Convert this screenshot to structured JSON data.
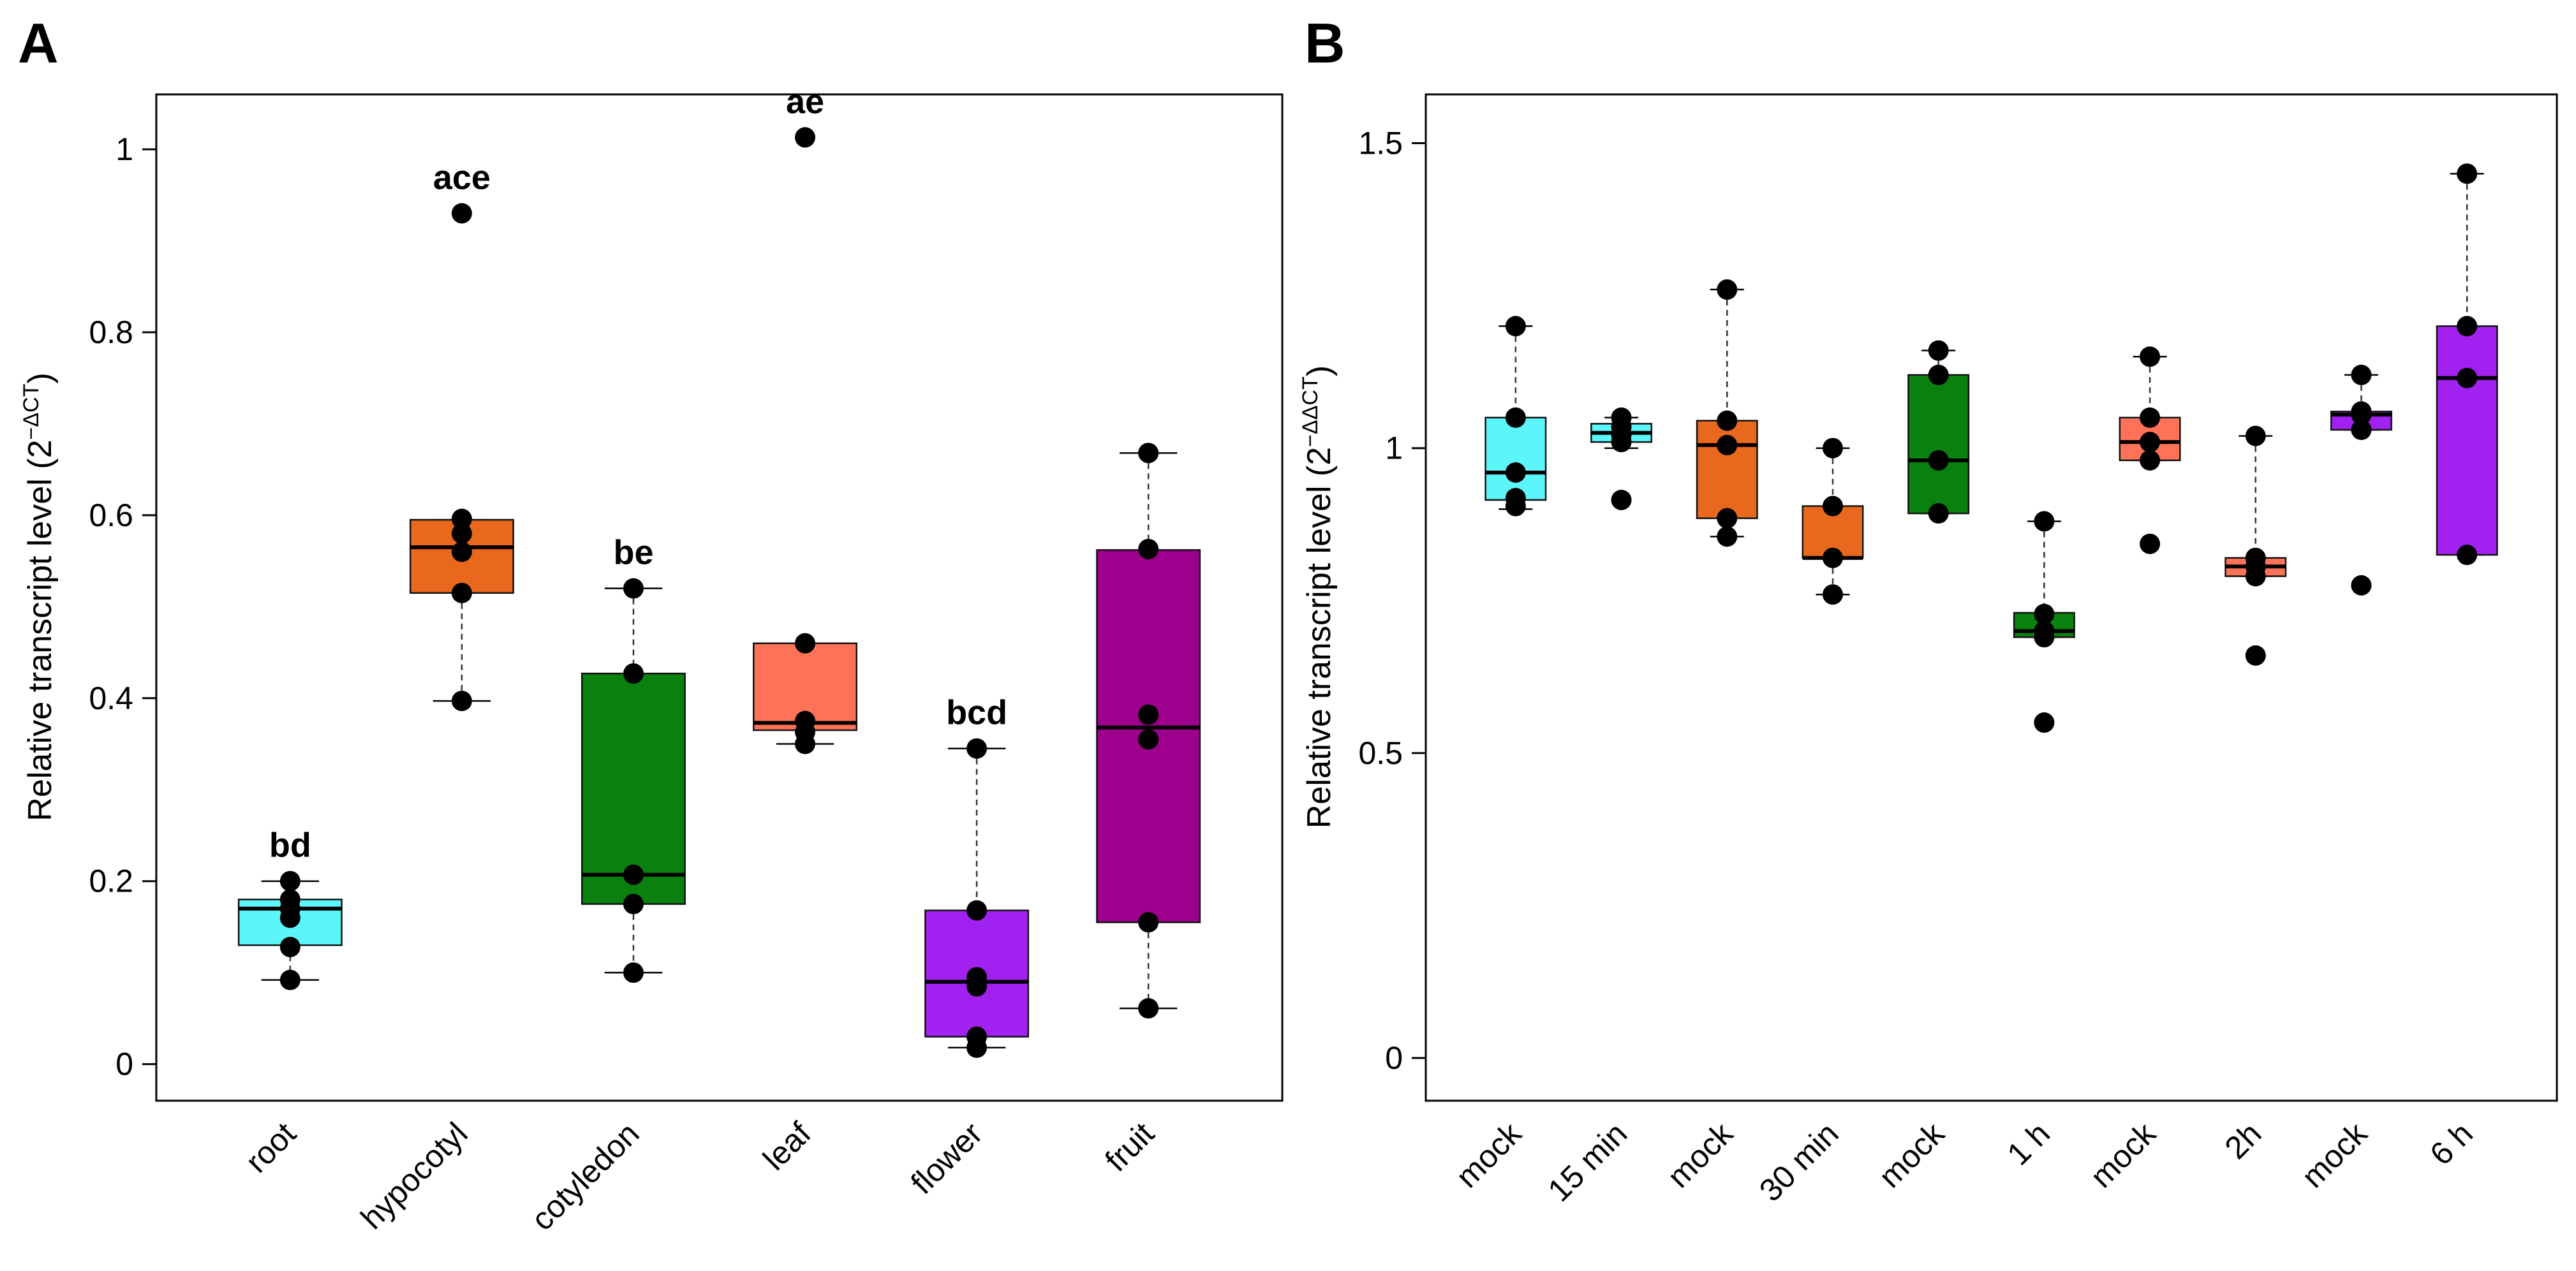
{
  "chart_data": [
    {
      "panel": "A",
      "type": "box",
      "ylabel": "Relative transcript level (2",
      "ylabel_sup": "−ΔCT",
      "ylabel_close": ")",
      "ylim": [
        -0.04,
        1.06
      ],
      "yticks": [
        0,
        0.2,
        0.4,
        0.6,
        0.8,
        1
      ],
      "ytick_labels": [
        "0",
        "0.2",
        "0.4",
        "0.6",
        "0.8",
        "1"
      ],
      "categories": [
        "root",
        "hypocotyl",
        "cotyledon",
        "leaf",
        "flower",
        "fruit"
      ],
      "boxes": [
        {
          "label": "root",
          "color": "#5CF5FA",
          "q1": 0.13,
          "median": 0.17,
          "q3": 0.18,
          "whisker_low": 0.092,
          "whisker_high": 0.2,
          "sig": "bd",
          "points": [
            0.092,
            0.128,
            0.16,
            0.17,
            0.18,
            0.2
          ]
        },
        {
          "label": "hypocotyl",
          "color": "#E8681E",
          "q1": 0.515,
          "median": 0.565,
          "q3": 0.595,
          "whisker_low": 0.397,
          "whisker_high": 0.595,
          "sig": "ace",
          "points": [
            0.397,
            0.515,
            0.56,
            0.58,
            0.596,
            0.93
          ]
        },
        {
          "label": "cotyledon",
          "color": "#0A800F",
          "q1": 0.175,
          "median": 0.207,
          "q3": 0.427,
          "whisker_low": 0.1,
          "whisker_high": 0.52,
          "sig": "be",
          "points": [
            0.1,
            0.175,
            0.207,
            0.427,
            0.52
          ]
        },
        {
          "label": "leaf",
          "color": "#FE7358",
          "q1": 0.365,
          "median": 0.373,
          "q3": 0.46,
          "whisker_low": 0.35,
          "whisker_high": 0.46,
          "sig": "ae",
          "points": [
            0.35,
            0.363,
            0.375,
            0.46,
            1.013
          ]
        },
        {
          "label": "flower",
          "color": "#A122F0",
          "q1": 0.03,
          "median": 0.09,
          "q3": 0.168,
          "whisker_low": 0.018,
          "whisker_high": 0.345,
          "sig": "bcd",
          "points": [
            0.018,
            0.03,
            0.085,
            0.095,
            0.168,
            0.345
          ]
        },
        {
          "label": "fruit",
          "color": "#9C008C",
          "q1": 0.155,
          "median": 0.368,
          "q3": 0.562,
          "whisker_low": 0.061,
          "whisker_high": 0.668,
          "sig": "",
          "points": [
            0.061,
            0.155,
            0.355,
            0.382,
            0.563,
            0.668
          ]
        }
      ]
    },
    {
      "panel": "B",
      "type": "box",
      "ylabel": "Relative transcript level (2",
      "ylabel_sup": "−ΔΔCT",
      "ylabel_close": ")",
      "ylim": [
        -0.07,
        1.58
      ],
      "yticks": [
        0,
        0.5,
        1,
        1.5
      ],
      "ytick_labels": [
        "0",
        "0.5",
        "1",
        "1.5"
      ],
      "categories": [
        "mock",
        "15 min",
        "mock",
        "30 min",
        "mock",
        "1 h",
        "mock",
        "2h",
        "mock",
        "6 h"
      ],
      "boxes": [
        {
          "label": "mock",
          "color": "#5CF5FA",
          "q1": 0.915,
          "median": 0.96,
          "q3": 1.05,
          "whisker_low": 0.9,
          "whisker_high": 1.2,
          "points": [
            0.905,
            0.918,
            0.96,
            1.05,
            1.2
          ]
        },
        {
          "label": "15 min",
          "color": "#5CF5FA",
          "q1": 1.01,
          "median": 1.025,
          "q3": 1.04,
          "whisker_low": 1.0,
          "whisker_high": 1.05,
          "points": [
            0.915,
            1.01,
            1.022,
            1.035,
            1.05
          ]
        },
        {
          "label": "mock",
          "color": "#E8681E",
          "q1": 0.885,
          "median": 1.005,
          "q3": 1.045,
          "whisker_low": 0.855,
          "whisker_high": 1.26,
          "points": [
            0.855,
            0.885,
            1.005,
            1.045,
            1.26
          ]
        },
        {
          "label": "30 min",
          "color": "#E8681E",
          "q1": 0.82,
          "median": 0.82,
          "q3": 0.905,
          "whisker_low": 0.76,
          "whisker_high": 1.0,
          "points": [
            0.76,
            0.82,
            0.905,
            1.0
          ]
        },
        {
          "label": "mock",
          "color": "#0A800F",
          "q1": 0.893,
          "median": 0.98,
          "q3": 1.12,
          "whisker_low": 0.893,
          "whisker_high": 1.16,
          "points": [
            0.893,
            0.98,
            1.12,
            1.16
          ]
        },
        {
          "label": "1 h",
          "color": "#0A800F",
          "q1": 0.69,
          "median": 0.7,
          "q3": 0.73,
          "whisker_low": 0.69,
          "whisker_high": 0.88,
          "points": [
            0.55,
            0.69,
            0.7,
            0.728,
            0.88
          ]
        },
        {
          "label": "mock",
          "color": "#FE7358",
          "q1": 0.98,
          "median": 1.01,
          "q3": 1.05,
          "whisker_low": 0.98,
          "whisker_high": 1.15,
          "points": [
            0.843,
            0.98,
            1.01,
            1.05,
            1.15
          ]
        },
        {
          "label": "2h",
          "color": "#FE7358",
          "q1": 0.79,
          "median": 0.806,
          "q3": 0.82,
          "whisker_low": 0.79,
          "whisker_high": 1.02,
          "points": [
            0.66,
            0.79,
            0.806,
            0.82,
            1.02
          ]
        },
        {
          "label": "mock",
          "color": "#A122F0",
          "q1": 1.03,
          "median": 1.055,
          "q3": 1.06,
          "whisker_low": 1.03,
          "whisker_high": 1.12,
          "points": [
            0.775,
            1.03,
            1.055,
            1.06,
            1.12
          ]
        },
        {
          "label": "6 h",
          "color": "#A122F0",
          "q1": 0.825,
          "median": 1.115,
          "q3": 1.2,
          "whisker_low": 0.825,
          "whisker_high": 1.45,
          "points": [
            0.825,
            1.115,
            1.2,
            1.45
          ]
        }
      ]
    }
  ]
}
